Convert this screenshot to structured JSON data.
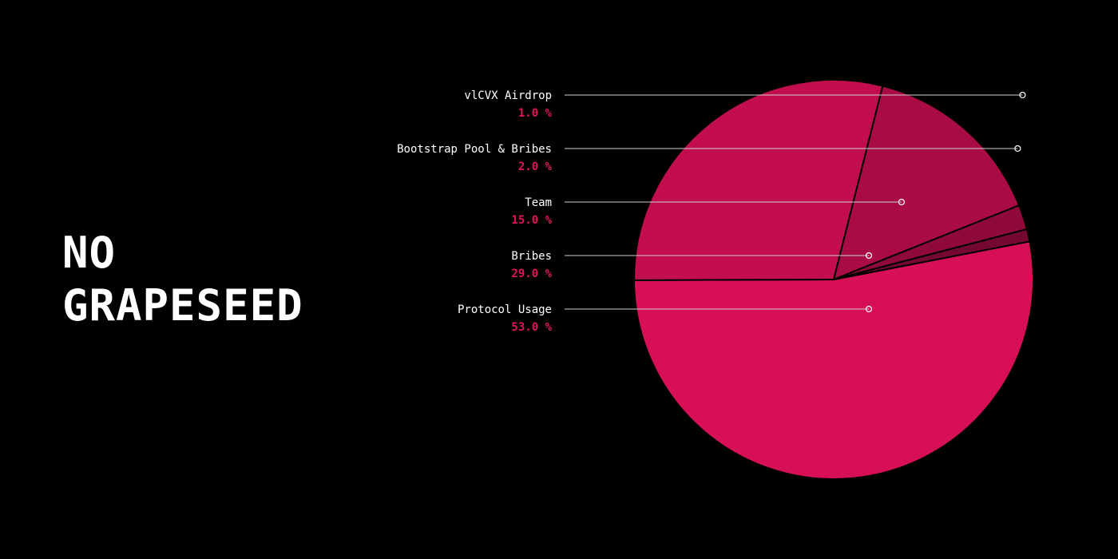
{
  "brand": {
    "line1": "NO",
    "line2": "GRAPESEED"
  },
  "chart_data": {
    "type": "pie",
    "title": "",
    "slices": [
      {
        "label": "Protocol Usage",
        "value": 53.0,
        "display": "53.0 %",
        "color": "#d60f56"
      },
      {
        "label": "Bribes",
        "value": 29.0,
        "display": "29.0 %",
        "color": "#c20e4e"
      },
      {
        "label": "Team",
        "value": 15.0,
        "display": "15.0 %",
        "color": "#a90b44"
      },
      {
        "label": "Bootstrap Pool & Bribes",
        "value": 2.0,
        "display": "2.0 %",
        "color": "#8f0a3a"
      },
      {
        "label": "vlCVX Airdrop",
        "value": 1.0,
        "display": "1.0 %",
        "color": "#740832"
      }
    ],
    "start_angle_deg": -11,
    "direction": "clockwise",
    "legend_position": "left",
    "label_color": "#ffffff",
    "percent_color": "#e2145a"
  }
}
